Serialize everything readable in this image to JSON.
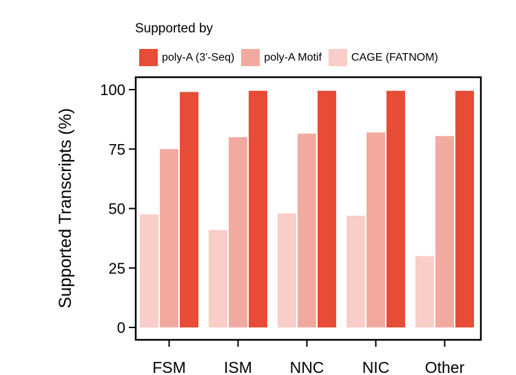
{
  "chart_data": {
    "type": "bar",
    "categories": [
      "FSM",
      "ISM",
      "NNC",
      "NIC",
      "Other"
    ],
    "legend_title": "Supported by",
    "ylabel": "Supported Transcripts  (%)",
    "xlabel": "",
    "ylim": [
      0,
      105
    ],
    "yticks": [
      0,
      25,
      50,
      75,
      100
    ],
    "grid": false,
    "legend_position": "top",
    "series": [
      {
        "name": "CAGE (FATNOM)",
        "color": "#f9cdc8",
        "values": [
          47.5,
          41,
          48,
          47,
          30
        ]
      },
      {
        "name": "poly-A Motif",
        "color": "#f2aaa0",
        "values": [
          75,
          80,
          81.5,
          82,
          80.5
        ]
      },
      {
        "name": "poly-A (3'-Seq)",
        "color": "#e64c36",
        "values": [
          99,
          99.5,
          99.5,
          99.5,
          99.5
        ]
      }
    ],
    "legend_order": [
      2,
      1,
      0
    ]
  }
}
